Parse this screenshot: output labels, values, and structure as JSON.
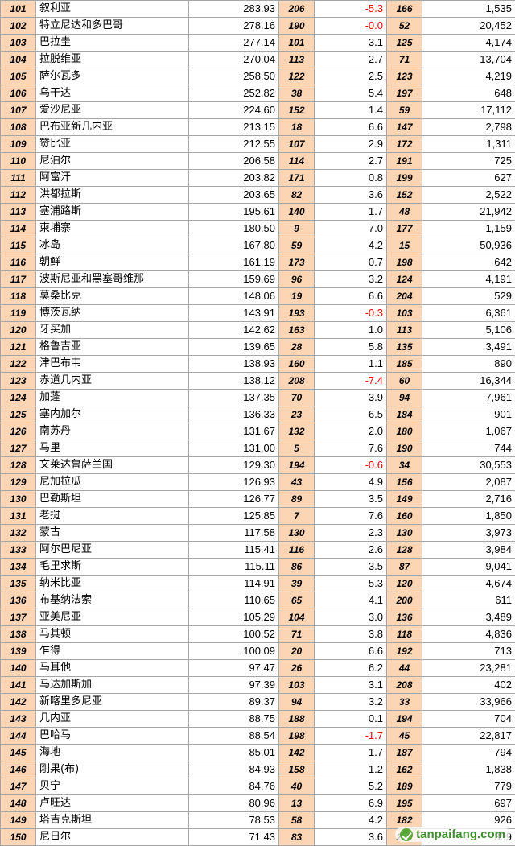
{
  "rows": [
    [
      "101",
      "叙利亚",
      "283.93",
      "206",
      "-5.3",
      "166",
      "1,535"
    ],
    [
      "102",
      "特立尼达和多巴哥",
      "278.16",
      "190",
      "-0.0",
      "52",
      "20,452"
    ],
    [
      "103",
      "巴拉圭",
      "277.14",
      "101",
      "3.1",
      "125",
      "4,174"
    ],
    [
      "104",
      "拉脱维亚",
      "270.04",
      "113",
      "2.7",
      "71",
      "13,704"
    ],
    [
      "105",
      "萨尔瓦多",
      "258.50",
      "122",
      "2.5",
      "123",
      "4,219"
    ],
    [
      "106",
      "乌干达",
      "252.82",
      "38",
      "5.4",
      "197",
      "648"
    ],
    [
      "107",
      "爱沙尼亚",
      "224.60",
      "152",
      "1.4",
      "59",
      "17,112"
    ],
    [
      "108",
      "巴布亚新几内亚",
      "213.15",
      "18",
      "6.6",
      "147",
      "2,798"
    ],
    [
      "109",
      "赞比亚",
      "212.55",
      "107",
      "2.9",
      "172",
      "1,311"
    ],
    [
      "110",
      "尼泊尔",
      "206.58",
      "114",
      "2.7",
      "191",
      "725"
    ],
    [
      "111",
      "阿富汗",
      "203.82",
      "171",
      "0.8",
      "199",
      "627"
    ],
    [
      "112",
      "洪都拉斯",
      "203.65",
      "82",
      "3.6",
      "152",
      "2,522"
    ],
    [
      "113",
      "塞浦路斯",
      "195.61",
      "140",
      "1.7",
      "48",
      "21,942"
    ],
    [
      "114",
      "柬埔寨",
      "180.50",
      "9",
      "7.0",
      "177",
      "1,159"
    ],
    [
      "115",
      "冰岛",
      "167.80",
      "59",
      "4.2",
      "15",
      "50,936"
    ],
    [
      "116",
      "朝鲜",
      "161.19",
      "173",
      "0.7",
      "198",
      "642"
    ],
    [
      "117",
      "波斯尼亚和黑塞哥维那",
      "159.69",
      "96",
      "3.2",
      "124",
      "4,191"
    ],
    [
      "118",
      "莫桑比克",
      "148.06",
      "19",
      "6.6",
      "204",
      "529"
    ],
    [
      "119",
      "博茨瓦纳",
      "143.91",
      "193",
      "-0.3",
      "103",
      "6,361"
    ],
    [
      "120",
      "牙买加",
      "142.62",
      "163",
      "1.0",
      "113",
      "5,106"
    ],
    [
      "121",
      "格鲁吉亚",
      "139.65",
      "28",
      "5.8",
      "135",
      "3,491"
    ],
    [
      "122",
      "津巴布韦",
      "138.93",
      "160",
      "1.1",
      "185",
      "890"
    ],
    [
      "123",
      "赤道几内亚",
      "138.12",
      "208",
      "-7.4",
      "60",
      "16,344"
    ],
    [
      "124",
      "加蓬",
      "137.35",
      "70",
      "3.9",
      "94",
      "7,961"
    ],
    [
      "125",
      "塞内加尔",
      "136.33",
      "23",
      "6.5",
      "184",
      "901"
    ],
    [
      "126",
      "南苏丹",
      "131.67",
      "132",
      "2.0",
      "180",
      "1,067"
    ],
    [
      "127",
      "马里",
      "131.00",
      "5",
      "7.6",
      "190",
      "744"
    ],
    [
      "128",
      "文莱达鲁萨兰国",
      "129.30",
      "194",
      "-0.6",
      "34",
      "30,553"
    ],
    [
      "129",
      "尼加拉瓜",
      "126.93",
      "43",
      "4.9",
      "156",
      "2,087"
    ],
    [
      "130",
      "巴勒斯坦",
      "126.77",
      "89",
      "3.5",
      "149",
      "2,716"
    ],
    [
      "131",
      "老挝",
      "125.85",
      "7",
      "7.6",
      "160",
      "1,850"
    ],
    [
      "132",
      "蒙古",
      "117.58",
      "130",
      "2.3",
      "130",
      "3,973"
    ],
    [
      "133",
      "阿尔巴尼亚",
      "115.41",
      "116",
      "2.6",
      "128",
      "3,984"
    ],
    [
      "134",
      "毛里求斯",
      "115.11",
      "86",
      "3.5",
      "87",
      "9,041"
    ],
    [
      "135",
      "纳米比亚",
      "114.91",
      "39",
      "5.3",
      "120",
      "4,674"
    ],
    [
      "136",
      "布基纳法索",
      "110.65",
      "65",
      "4.1",
      "200",
      "611"
    ],
    [
      "137",
      "亚美尼亚",
      "105.29",
      "104",
      "3.0",
      "136",
      "3,489"
    ],
    [
      "138",
      "马其顿",
      "100.52",
      "71",
      "3.8",
      "118",
      "4,836"
    ],
    [
      "139",
      "乍得",
      "100.09",
      "20",
      "6.6",
      "192",
      "713"
    ],
    [
      "140",
      "马耳他",
      "97.47",
      "26",
      "6.2",
      "44",
      "23,281"
    ],
    [
      "141",
      "马达加斯加",
      "97.39",
      "103",
      "3.1",
      "208",
      "402"
    ],
    [
      "142",
      "新喀里多尼亚",
      "89.37",
      "94",
      "3.2",
      "33",
      "33,966"
    ],
    [
      "143",
      "几内亚",
      "88.75",
      "188",
      "0.1",
      "194",
      "704"
    ],
    [
      "144",
      "巴哈马",
      "88.54",
      "198",
      "-1.7",
      "45",
      "22,817"
    ],
    [
      "145",
      "海地",
      "85.01",
      "142",
      "1.7",
      "187",
      "794"
    ],
    [
      "146",
      "刚果(布)",
      "84.93",
      "158",
      "1.2",
      "162",
      "1,838"
    ],
    [
      "147",
      "贝宁",
      "84.76",
      "40",
      "5.2",
      "189",
      "779"
    ],
    [
      "148",
      "卢旺达",
      "80.96",
      "13",
      "6.9",
      "195",
      "697"
    ],
    [
      "149",
      "塔吉克斯坦",
      "78.53",
      "58",
      "4.2",
      "182",
      "926"
    ],
    [
      "150",
      "尼日尔",
      "71.43",
      "83",
      "3.6",
      "210",
      "359"
    ]
  ],
  "watermark": {
    "text": "tanpaifang.com",
    "icon": "leaf-check-logo-icon"
  },
  "colors": {
    "rank_bg": "#fcd5b4",
    "negative": "#ff0000",
    "border": "#a6a6a6"
  }
}
